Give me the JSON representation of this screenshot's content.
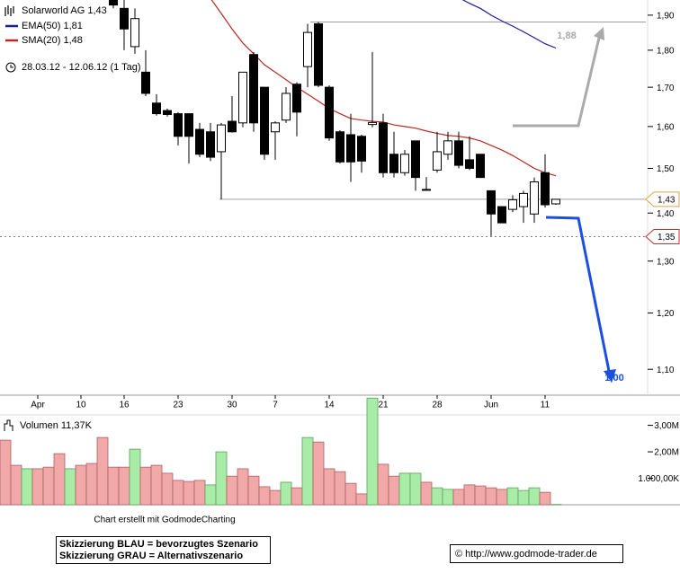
{
  "chart_data": {
    "type": "candlestick",
    "instrument": "Solarworld AG",
    "last_price_label": "1,43",
    "subtitle": "28.03.12 - 12.06.12 (1 Tag)",
    "categories": [
      null,
      null,
      null,
      "Apr",
      null,
      null,
      null,
      "10",
      null,
      null,
      null,
      "16",
      null,
      null,
      null,
      null,
      "23",
      null,
      null,
      null,
      null,
      "30",
      null,
      null,
      null,
      "7",
      null,
      null,
      null,
      null,
      "14",
      null,
      null,
      null,
      null,
      "21",
      null,
      null,
      null,
      null,
      "28",
      null,
      null,
      null,
      null,
      "Jun",
      null,
      null,
      null,
      null,
      "11",
      null
    ],
    "open": [
      null,
      null,
      null,
      null,
      null,
      null,
      null,
      null,
      null,
      null,
      1.97,
      1.92,
      1.81,
      1.74,
      1.659,
      1.64,
      1.632,
      1.632,
      1.593,
      1.587,
      1.539,
      1.613,
      1.609,
      1.788,
      1.7,
      1.587,
      1.616,
      1.708,
      1.755,
      1.875,
      1.7,
      1.587,
      1.58,
      1.576,
      1.605,
      1.609,
      1.533,
      1.49,
      1.565,
      1.452,
      1.496,
      1.533,
      1.565,
      1.52,
      1.533,
      1.449,
      1.414,
      1.408,
      1.414,
      1.398,
      1.49,
      1.42
    ],
    "high": [
      null,
      null,
      null,
      null,
      null,
      null,
      null,
      null,
      null,
      null,
      2.0,
      1.97,
      1.92,
      1.8,
      1.682,
      1.645,
      1.636,
      1.632,
      1.609,
      1.609,
      1.609,
      1.677,
      1.74,
      1.795,
      1.7,
      1.613,
      1.7,
      1.713,
      1.875,
      1.88,
      1.705,
      1.591,
      1.632,
      1.58,
      1.795,
      1.632,
      1.587,
      1.543,
      1.565,
      1.48,
      1.587,
      1.587,
      1.587,
      1.576,
      1.533,
      1.449,
      1.414,
      1.439,
      1.449,
      1.479,
      1.533,
      1.43
    ],
    "low": [
      null,
      null,
      null,
      null,
      null,
      null,
      null,
      null,
      null,
      null,
      1.92,
      1.8,
      1.79,
      1.677,
      1.627,
      1.625,
      1.554,
      1.511,
      1.526,
      1.517,
      1.43,
      1.585,
      1.598,
      1.587,
      1.52,
      1.52,
      1.609,
      1.576,
      1.7,
      1.7,
      1.565,
      1.511,
      1.469,
      1.49,
      1.598,
      1.479,
      1.479,
      1.483,
      1.449,
      1.452,
      1.49,
      1.52,
      1.5,
      1.496,
      1.479,
      1.351,
      1.379,
      1.402,
      1.379,
      1.379,
      1.412,
      1.418
    ],
    "close": [
      null,
      null,
      null,
      null,
      null,
      null,
      null,
      null,
      null,
      null,
      1.93,
      1.86,
      1.89,
      1.684,
      1.632,
      1.63,
      1.576,
      1.576,
      1.533,
      1.526,
      1.604,
      1.587,
      1.74,
      1.609,
      1.533,
      1.609,
      1.684,
      1.636,
      1.85,
      1.705,
      1.572,
      1.515,
      1.515,
      1.517,
      1.61,
      1.49,
      1.49,
      1.533,
      1.479,
      1.452,
      1.539,
      1.565,
      1.507,
      1.5,
      1.479,
      1.398,
      1.379,
      1.429,
      1.443,
      1.469,
      1.418,
      1.43
    ],
    "up_color": "#ffffff",
    "down_color": "#000000",
    "log_scale": true,
    "ylim": [
      1.057,
      1.945
    ],
    "yticks": [
      {
        "value": 1.1,
        "label": "1,10"
      },
      {
        "value": 1.2,
        "label": "1,20"
      },
      {
        "value": 1.3,
        "label": "1,30"
      },
      {
        "value": 1.4,
        "label": "1,40"
      },
      {
        "value": 1.5,
        "label": "1,50"
      },
      {
        "value": 1.6,
        "label": "1,60"
      },
      {
        "value": 1.7,
        "label": "1,70"
      },
      {
        "value": 1.8,
        "label": "1,80"
      },
      {
        "value": 1.9,
        "label": "1,90"
      }
    ],
    "series": [
      {
        "name": "EMA(50)",
        "color": "#1c1c9c",
        "value_label": "1,81",
        "values": [
          null,
          null,
          null,
          null,
          null,
          null,
          null,
          null,
          null,
          null,
          null,
          null,
          null,
          null,
          null,
          null,
          null,
          null,
          null,
          null,
          null,
          null,
          null,
          null,
          null,
          null,
          null,
          null,
          null,
          null,
          null,
          null,
          null,
          null,
          null,
          null,
          null,
          null,
          null,
          null,
          null,
          null,
          1.952,
          1.935,
          1.92,
          1.9,
          1.883,
          1.868,
          1.852,
          1.835,
          1.818,
          1.806
        ]
      },
      {
        "name": "SMA(20)",
        "color": "#b82a22",
        "value_label": "1,48",
        "values": [
          null,
          null,
          null,
          null,
          null,
          null,
          null,
          null,
          null,
          null,
          null,
          null,
          null,
          null,
          null,
          null,
          null,
          null,
          null,
          1.95,
          1.905,
          1.86,
          1.82,
          1.79,
          1.76,
          1.74,
          1.72,
          1.7,
          1.682,
          1.664,
          1.645,
          1.632,
          1.62,
          1.616,
          1.613,
          1.611,
          1.604,
          1.6,
          1.596,
          1.589,
          1.583,
          1.578,
          1.576,
          1.572,
          1.565,
          1.554,
          1.543,
          1.53,
          1.515,
          1.5,
          1.49,
          1.483
        ]
      }
    ],
    "hlines": [
      {
        "value": 1.88,
        "color": "#a0a0a0"
      },
      {
        "value": 1.43,
        "color": "#a0a0a0"
      },
      {
        "value": 1.35,
        "color": "#808080"
      }
    ],
    "price_tags": [
      {
        "value": 1.43,
        "label": "1,43",
        "color": "#d8a840"
      },
      {
        "value": 1.35,
        "label": "1,35",
        "color": "#c03030"
      }
    ],
    "annotations": [
      {
        "text": "1,88",
        "color": "#a8a8a8"
      },
      {
        "text": "1,00",
        "color": "#1a4fe0"
      }
    ],
    "volume": {
      "title": "Volumen",
      "value_label": "11,37K",
      "values": [
        2440000,
        1490000,
        1360000,
        1360000,
        1420000,
        1930000,
        1360000,
        1490000,
        1560000,
        2540000,
        1420000,
        1420000,
        2100000,
        1420000,
        1490000,
        1190000,
        920000,
        880000,
        920000,
        750000,
        2000000,
        1080000,
        1360000,
        1080000,
        680000,
        540000,
        850000,
        640000,
        2540000,
        2370000,
        1360000,
        1250000,
        810000,
        410000,
        4030000,
        1530000,
        1080000,
        1190000,
        1190000,
        850000,
        640000,
        580000,
        580000,
        750000,
        710000,
        640000,
        580000,
        640000,
        540000,
        640000,
        470000,
        11370
      ],
      "colors": [
        "#f0a8a8",
        "#f0a8a8",
        "#a8eca8",
        "#f0a8a8",
        "#f0a8a8",
        "#f0a8a8",
        "#a8eca8",
        "#f0a8a8",
        "#f0a8a8",
        "#f0a8a8",
        "#f0a8a8",
        "#f0a8a8",
        "#a8eca8",
        "#f0a8a8",
        "#f0a8a8",
        "#f0a8a8",
        "#f0a8a8",
        "#f0a8a8",
        "#f0a8a8",
        "#a8eca8",
        "#a8eca8",
        "#f0a8a8",
        "#f0a8a8",
        "#f0a8a8",
        "#f0a8a8",
        "#f0a8a8",
        "#a8eca8",
        "#f0a8a8",
        "#a8eca8",
        "#f0a8a8",
        "#f0a8a8",
        "#f0a8a8",
        "#f0a8a8",
        "#f0a8a8",
        "#a8eca8",
        "#f0a8a8",
        "#f0a8a8",
        "#a8eca8",
        "#a8eca8",
        "#f0a8a8",
        "#a8eca8",
        "#a8eca8",
        "#f0a8a8",
        "#f0a8a8",
        "#f0a8a8",
        "#f0a8a8",
        "#f0a8a8",
        "#a8eca8",
        "#a8eca8",
        "#a8eca8",
        "#f0a8a8",
        "#a8eca8"
      ],
      "ylim": [
        0,
        4140000
      ],
      "yticks": [
        {
          "value": 1000000,
          "label": "1.000,00K"
        },
        {
          "value": 2000000,
          "label": "2,00M"
        },
        {
          "value": 3000000,
          "label": "3,00M"
        }
      ]
    }
  },
  "footer": {
    "credit": "Chart erstellt mit GodmodeCharting",
    "legend_blue": "Skizzierung BLAU = bevorzugtes Szenario",
    "legend_gray": "Skizzierung GRAU = Alternativszenario",
    "url": "© http://www.godmode-trader.de"
  }
}
